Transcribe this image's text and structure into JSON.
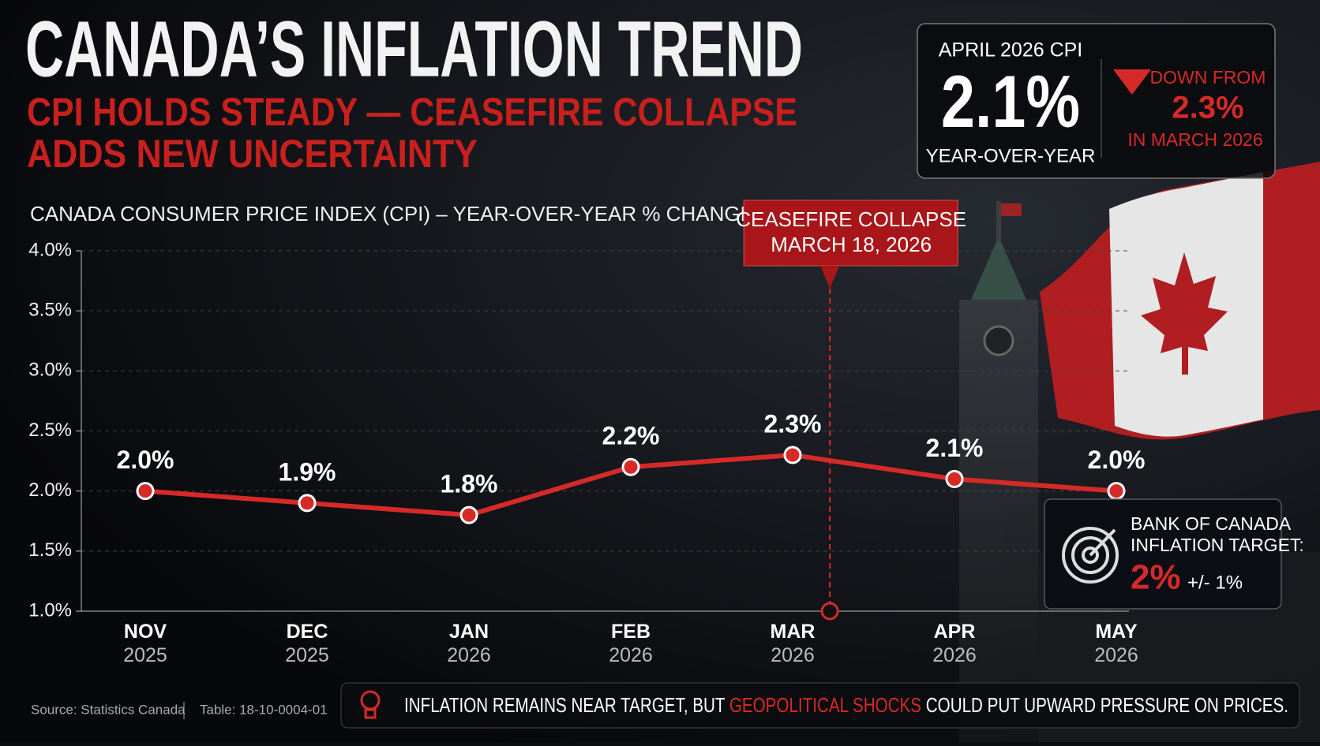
{
  "header": {
    "title": "CANADA’S INFLATION TREND",
    "subtitle_lines": [
      "CPI HOLDS STEADY — CEASEFIRE COLLAPSE",
      "ADDS NEW UNCERTAINTY"
    ]
  },
  "callout": {
    "label": "APRIL 2026 CPI",
    "value": "2.1%",
    "period": "YEAR-OVER-YEAR",
    "change_lines": [
      "DOWN FROM",
      "2.3%",
      "IN MARCH 2026"
    ]
  },
  "chart_data": {
    "type": "line",
    "title": "CANADA CONSUMER PRICE INDEX (CPI) – YEAR-OVER-YEAR % CHANGE",
    "categories": [
      "NOV 2025",
      "DEC 2025",
      "JAN 2026",
      "FEB 2026",
      "MAR 2026",
      "APR 2026",
      "MAY 2026"
    ],
    "values": [
      2.0,
      1.9,
      1.8,
      2.2,
      2.3,
      2.1,
      2.0
    ],
    "value_labels": [
      "2.0%",
      "1.9%",
      "1.8%",
      "2.2%",
      "2.3%",
      "2.1%",
      "2.0%"
    ],
    "color": "#d62a28",
    "ylim": [
      1,
      4
    ],
    "yticks": [
      {
        "value": 1,
        "label": "1.0%"
      },
      {
        "value": 1.5,
        "label": "1.5%"
      },
      {
        "value": 2,
        "label": "2.0%"
      },
      {
        "value": 2.5,
        "label": "2.5%"
      },
      {
        "value": 3,
        "label": "3.0%"
      },
      {
        "value": 3.5,
        "label": "3.5%"
      },
      {
        "value": 4,
        "label": "4.0%"
      }
    ],
    "grid": true,
    "annotation": [
      "CEASEFIRE COLLAPSE",
      "MARCH 18, 2026"
    ]
  },
  "target": {
    "lines": [
      "BANK OF CANADA",
      "INFLATION TARGET:"
    ],
    "value": "2%",
    "band": "+/- 1%"
  },
  "footer": {
    "source": "Source: Statistics Canada",
    "table": "Table: 18-10-0004-01",
    "message": [
      "INFLATION REMAINS NEAR TARGET, BUT ",
      "GEOPOLITICAL SHOCKS",
      " COULD PUT UPWARD PRESSURE ON PRICES."
    ]
  }
}
